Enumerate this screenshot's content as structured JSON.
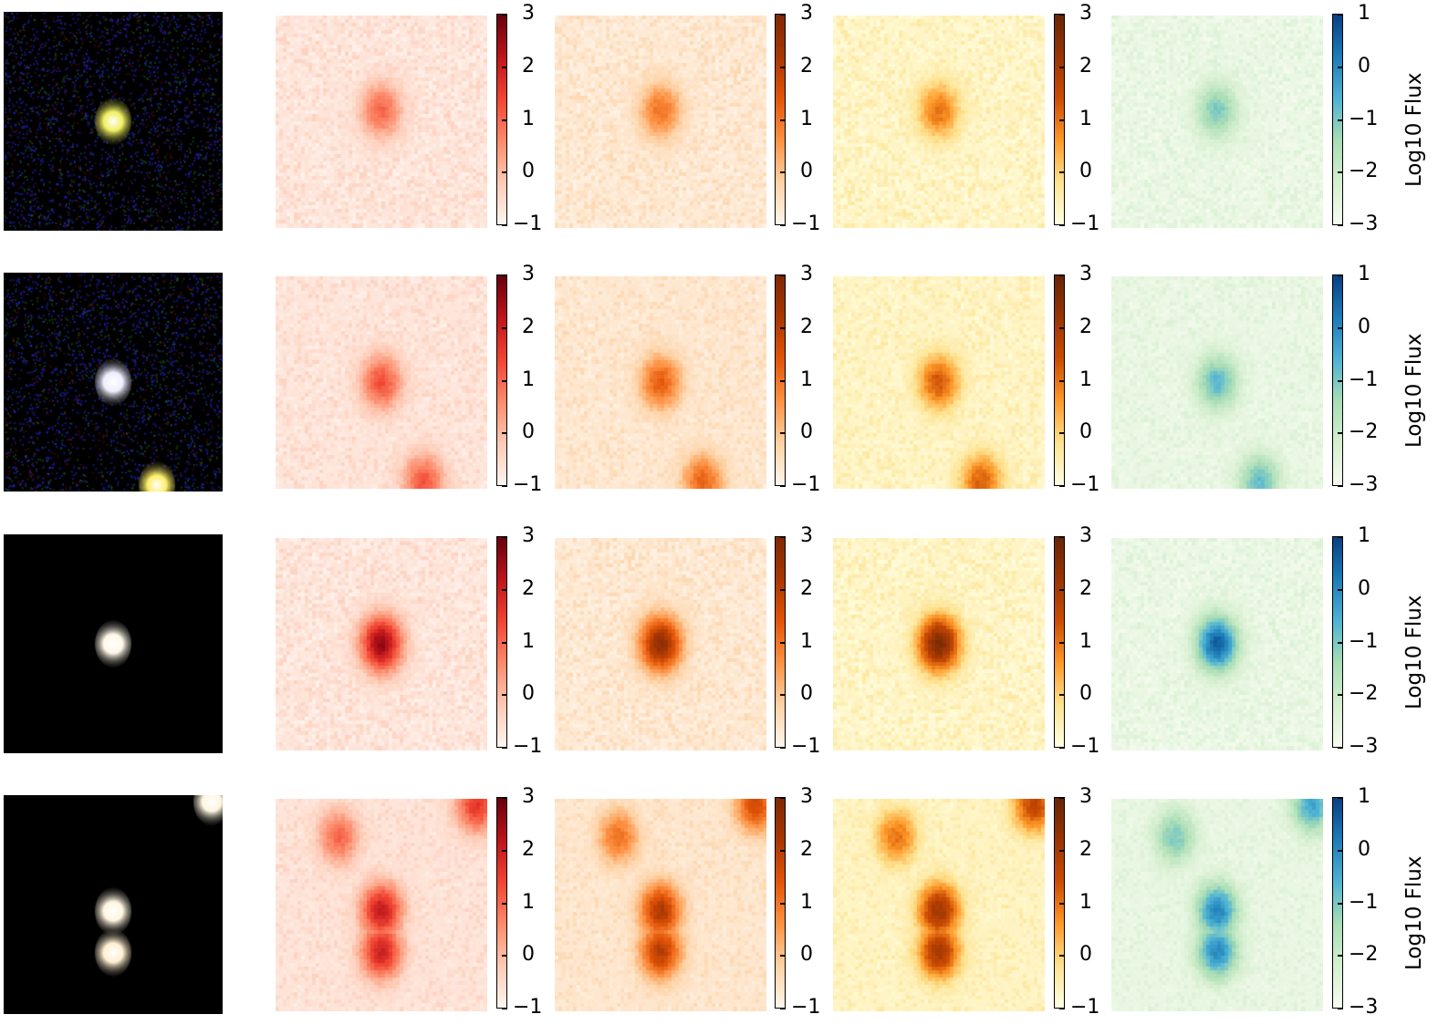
{
  "chart_data": {
    "type": "heatmap",
    "layout": "4 rows x 5 panels: RGB cutout + four Log10 Flux maps with colorbars",
    "rows": [
      {
        "rgb": {
          "sources": [
            {
              "x": 0.5,
              "y": 0.5,
              "color": "#f0f060"
            }
          ],
          "noise": "blue-green"
        },
        "sources": [
          {
            "x": 0.5,
            "y": 0.45,
            "peak": 1.0
          }
        ]
      },
      {
        "rgb": {
          "sources": [
            {
              "x": 0.5,
              "y": 0.5,
              "color": "#eeeeff"
            },
            {
              "x": 0.7,
              "y": 0.97,
              "color": "#ffee66"
            }
          ],
          "noise": "blue"
        },
        "sources": [
          {
            "x": 0.5,
            "y": 0.5,
            "peak": 1.3
          },
          {
            "x": 0.7,
            "y": 0.97,
            "peak": 1.2
          }
        ]
      },
      {
        "rgb": {
          "sources": [
            {
              "x": 0.5,
              "y": 0.5,
              "color": "#fff8e8"
            }
          ],
          "noise": "none"
        },
        "sources": [
          {
            "x": 0.5,
            "y": 0.5,
            "peak": 2.6
          }
        ]
      },
      {
        "rgb": {
          "sources": [
            {
              "x": 0.5,
              "y": 0.53,
              "color": "#fff6e0"
            },
            {
              "x": 0.5,
              "y": 0.72,
              "color": "#fff0d0"
            },
            {
              "x": 0.95,
              "y": 0.03,
              "color": "#fff6e0"
            }
          ],
          "noise": "none"
        },
        "sources": [
          {
            "x": 0.5,
            "y": 0.53,
            "peak": 2.1
          },
          {
            "x": 0.5,
            "y": 0.72,
            "peak": 2.0
          },
          {
            "x": 0.95,
            "y": 0.03,
            "peak": 1.6
          },
          {
            "x": 0.3,
            "y": 0.18,
            "peak": 1.0
          }
        ]
      }
    ],
    "columns": [
      {
        "cmap": "Reds",
        "vmin": -1,
        "vmax": 3,
        "ticks": [
          "3",
          "2",
          "1",
          "0",
          "−1"
        ],
        "stops": [
          "#fff5f0",
          "#fdcab5",
          "#fc8a6a",
          "#f14432",
          "#bc141a",
          "#67000d"
        ]
      },
      {
        "cmap": "Oranges",
        "vmin": -1,
        "vmax": 3,
        "ticks": [
          "3",
          "2",
          "1",
          "0",
          "−1"
        ],
        "stops": [
          "#fff5eb",
          "#fdd2a5",
          "#fd9243",
          "#e25508",
          "#a83703",
          "#7f2704"
        ]
      },
      {
        "cmap": "YlOrBr",
        "vmin": -1,
        "vmax": 3,
        "ticks": [
          "3",
          "2",
          "1",
          "0",
          "−1"
        ],
        "stops": [
          "#ffffe5",
          "#fee391",
          "#fe9929",
          "#cc4c02",
          "#993404",
          "#662506"
        ]
      },
      {
        "cmap": "GnBu",
        "vmin": -3,
        "vmax": 1,
        "ticks": [
          "1",
          "0",
          "−1",
          "−2",
          "−3"
        ],
        "stops": [
          "#f7fcf0",
          "#d5efcf",
          "#a8ddb5",
          "#4eb3d3",
          "#1c7cb8",
          "#084081"
        ]
      }
    ],
    "colorbar_label": "Log10 Flux",
    "row_labels": {
      "r0": "Log10 Flux",
      "r1": "Log10 Flux",
      "r2": "Log10 Flux",
      "r3": "Log10 Flux"
    }
  }
}
